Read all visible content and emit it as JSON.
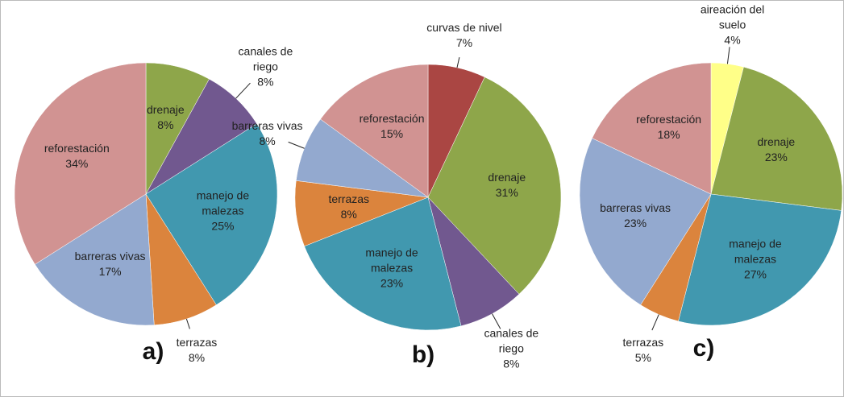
{
  "chart_data": [
    {
      "type": "pie",
      "title": "a)",
      "categories": [
        "drenaje",
        "canales de riego",
        "manejo de malezas",
        "terrazas",
        "barreras vivas",
        "reforestación"
      ],
      "values": [
        8,
        8,
        25,
        8,
        17,
        34
      ],
      "value_labels": [
        "8%",
        "8%",
        "25%",
        "8%",
        "17%",
        "34%"
      ],
      "colors": [
        "#8ea64a",
        "#71588f",
        "#4198af",
        "#db843d",
        "#93a9cf",
        "#d19392"
      ]
    },
    {
      "type": "pie",
      "title": "b)",
      "categories": [
        "curvas de nivel",
        "drenaje",
        "canales de riego",
        "manejo de malezas",
        "terrazas",
        "barreras vivas",
        "reforestación"
      ],
      "values": [
        7,
        31,
        8,
        23,
        8,
        8,
        15
      ],
      "value_labels": [
        "7%",
        "31%",
        "8%",
        "23%",
        "8%",
        "8%",
        "15%"
      ],
      "colors": [
        "#aa4643",
        "#8ea64a",
        "#71588f",
        "#4198af",
        "#db843d",
        "#93a9cf",
        "#d19392"
      ]
    },
    {
      "type": "pie",
      "title": "c)",
      "categories": [
        "aireación del suelo",
        "drenaje",
        "manejo de malezas",
        "terrazas",
        "barreras vivas",
        "reforestación"
      ],
      "values": [
        4,
        23,
        27,
        5,
        23,
        18
      ],
      "value_labels": [
        "4%",
        "23%",
        "27%",
        "5%",
        "23%",
        "18%"
      ],
      "colors": [
        "#ffff88",
        "#8ea64a",
        "#4198af",
        "#db843d",
        "#93a9cf",
        "#d19392"
      ]
    }
  ]
}
